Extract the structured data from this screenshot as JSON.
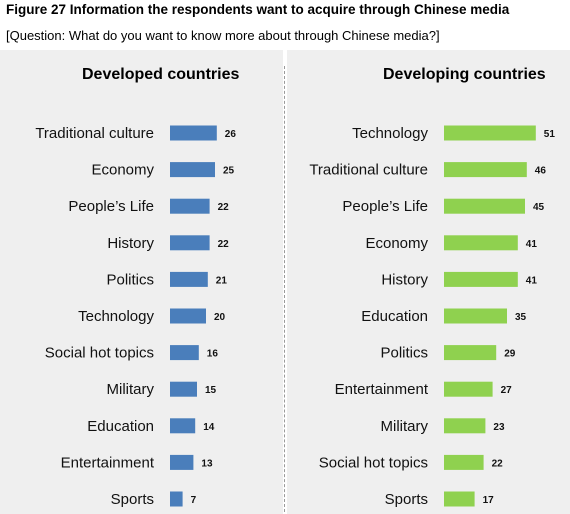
{
  "figure": {
    "title": "Figure 27 Information the respondents want to acquire through Chinese media",
    "question": "[Question: What do you want to know more about through Chinese media?]"
  },
  "chart_data": [
    {
      "type": "bar",
      "orientation": "horizontal",
      "title": "Developed countries",
      "color": "#4a7ebb",
      "categories": [
        "Traditional culture",
        "Economy",
        "People’s Life",
        "History",
        "Politics",
        "Technology",
        "Social hot topics",
        "Military",
        "Education",
        "Entertainment",
        "Sports"
      ],
      "values": [
        26,
        25,
        22,
        22,
        21,
        20,
        16,
        15,
        14,
        13,
        7
      ],
      "grid": false,
      "legend": "none"
    },
    {
      "type": "bar",
      "orientation": "horizontal",
      "title": "Developing countries",
      "color": "#8fd14f",
      "categories": [
        "Technology",
        "Traditional culture",
        "People’s Life",
        "Economy",
        "History",
        "Education",
        "Politics",
        "Entertainment",
        "Military",
        "Social hot topics",
        "Sports"
      ],
      "values": [
        51,
        46,
        45,
        41,
        41,
        35,
        29,
        27,
        23,
        22,
        17
      ],
      "grid": false,
      "legend": "none"
    }
  ]
}
